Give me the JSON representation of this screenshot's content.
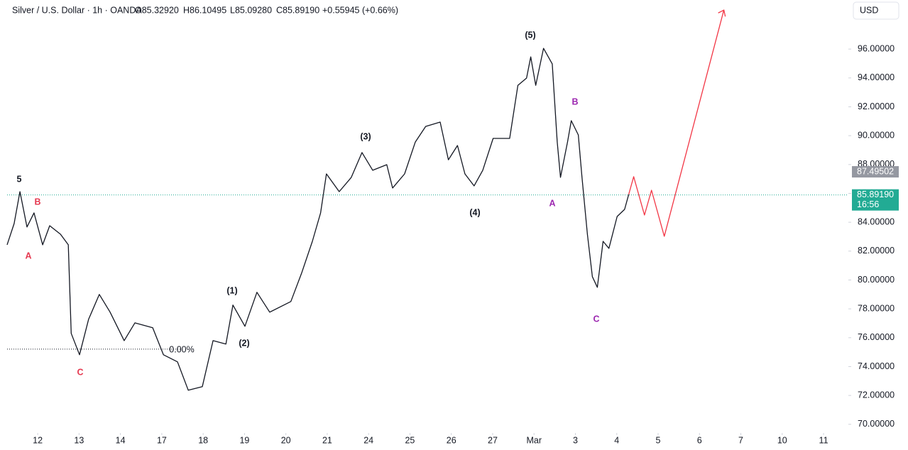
{
  "header": {
    "title": "Silver / U.S. Dollar · 1h · OANDA",
    "open": "O85.32920",
    "high": "H86.10495",
    "low": "L85.09280",
    "close": "C85.89190",
    "change": "+0.55945 (+0.66%)"
  },
  "currency": "USD",
  "chart_data": {
    "type": "line",
    "xlim": [
      -0.74,
      19.6
    ],
    "ylim": [
      69.4,
      99.4
    ],
    "xticks": [
      {
        "value": 0,
        "label": "12"
      },
      {
        "value": 1,
        "label": "13"
      },
      {
        "value": 2,
        "label": "14"
      },
      {
        "value": 3,
        "label": "17"
      },
      {
        "value": 4,
        "label": "18"
      },
      {
        "value": 5,
        "label": "19"
      },
      {
        "value": 6,
        "label": "20"
      },
      {
        "value": 7,
        "label": "21"
      },
      {
        "value": 8,
        "label": "24"
      },
      {
        "value": 9,
        "label": "25"
      },
      {
        "value": 10,
        "label": "26"
      },
      {
        "value": 11,
        "label": "27"
      },
      {
        "value": 12,
        "label": "Mar"
      },
      {
        "value": 13,
        "label": "3"
      },
      {
        "value": 14,
        "label": "4"
      },
      {
        "value": 15,
        "label": "5"
      },
      {
        "value": 16,
        "label": "6"
      },
      {
        "value": 17,
        "label": "7"
      },
      {
        "value": 18,
        "label": "10"
      },
      {
        "value": 19,
        "label": "11"
      }
    ],
    "yticks": [
      {
        "value": 70,
        "label": "70.00000"
      },
      {
        "value": 72,
        "label": "72.00000"
      },
      {
        "value": 74,
        "label": "74.00000"
      },
      {
        "value": 76,
        "label": "76.00000"
      },
      {
        "value": 78,
        "label": "78.00000"
      },
      {
        "value": 80,
        "label": "80.00000"
      },
      {
        "value": 82,
        "label": "82.00000"
      },
      {
        "value": 84,
        "label": "84.00000"
      },
      {
        "value": 86,
        "label": "86.00000"
      },
      {
        "value": 88,
        "label": "88.00000"
      },
      {
        "value": 90,
        "label": "90.00000"
      },
      {
        "value": 92,
        "label": "92.00000"
      },
      {
        "value": 94,
        "label": "94.00000"
      },
      {
        "value": 96,
        "label": "96.00000"
      }
    ],
    "series": [
      {
        "color": "#131722",
        "x": [
          -0.74,
          -0.57,
          -0.43,
          -0.26,
          -0.09,
          0.12,
          0.29,
          0.55,
          0.74,
          0.81,
          1.01,
          1.23,
          1.49,
          1.75,
          2.09,
          2.35,
          2.78,
          3.04,
          3.38,
          3.64,
          3.98,
          4.24,
          4.55,
          4.72,
          5.01,
          5.3,
          5.61,
          6.12,
          6.38,
          6.64,
          6.84,
          6.98,
          7.29,
          7.58,
          7.84,
          8.1,
          8.44,
          8.58,
          8.87,
          9.13,
          9.38,
          9.73,
          9.93,
          10.15,
          10.33,
          10.55,
          10.76,
          11.01,
          11.41,
          11.61,
          11.82,
          11.92,
          12.04,
          12.23,
          12.44,
          12.56,
          12.64,
          12.81,
          12.9,
          13.07,
          13.16,
          13.29,
          13.41,
          13.53,
          13.67,
          13.81,
          14.01,
          14.19,
          14.29
        ],
        "values": [
          82.44,
          83.91,
          86.12,
          83.67,
          84.65,
          82.44,
          83.76,
          83.17,
          82.44,
          76.3,
          74.82,
          77.28,
          79.0,
          77.77,
          75.8,
          77.03,
          76.69,
          74.82,
          74.33,
          72.36,
          72.61,
          75.8,
          75.56,
          78.26,
          76.79,
          79.15,
          77.77,
          78.51,
          80.47,
          82.68,
          84.65,
          87.35,
          86.12,
          87.1,
          88.83,
          87.6,
          87.99,
          86.37,
          87.35,
          89.56,
          90.64,
          90.94,
          88.33,
          89.32,
          87.35,
          86.52,
          87.6,
          89.81,
          89.81,
          93.49,
          93.99,
          95.46,
          93.49,
          96.05,
          94.97,
          89.56,
          87.11,
          89.56,
          91.04,
          90.05,
          87.11,
          83.17,
          80.23,
          79.49,
          82.68,
          82.19,
          84.4,
          84.89,
          85.93
        ]
      },
      {
        "color": "#f23645",
        "x": [
          14.29,
          14.41,
          14.67,
          14.84,
          15.15,
          16.59
        ],
        "values": [
          85.93,
          87.16,
          84.5,
          86.22,
          83.03,
          98.7
        ]
      }
    ],
    "last_price": {
      "value": 85.8919,
      "label": "85.89190",
      "color": "#22ab94"
    },
    "countdown": "16:56",
    "marker_price": {
      "value": 87.49502,
      "label": "87.49502"
    },
    "fib_level": 75.21,
    "annotations": [
      {
        "text": "5",
        "color": "#131722"
      },
      {
        "text": "B",
        "color": "#e53950"
      },
      {
        "text": "A",
        "color": "#e53950"
      },
      {
        "text": "C",
        "color": "#e53950"
      },
      {
        "text": "(1)",
        "color": "#131722"
      },
      {
        "text": "(2)",
        "color": "#131722"
      },
      {
        "text": "(3)",
        "color": "#131722"
      },
      {
        "text": "(4)",
        "color": "#131722"
      },
      {
        "text": "(5)",
        "color": "#131722"
      },
      {
        "text": "A",
        "color": "#9c27b0"
      },
      {
        "text": "B",
        "color": "#9c27b0"
      },
      {
        "text": "C",
        "color": "#9c27b0"
      },
      {
        "text": "0.00%",
        "color": "#131722"
      }
    ]
  }
}
